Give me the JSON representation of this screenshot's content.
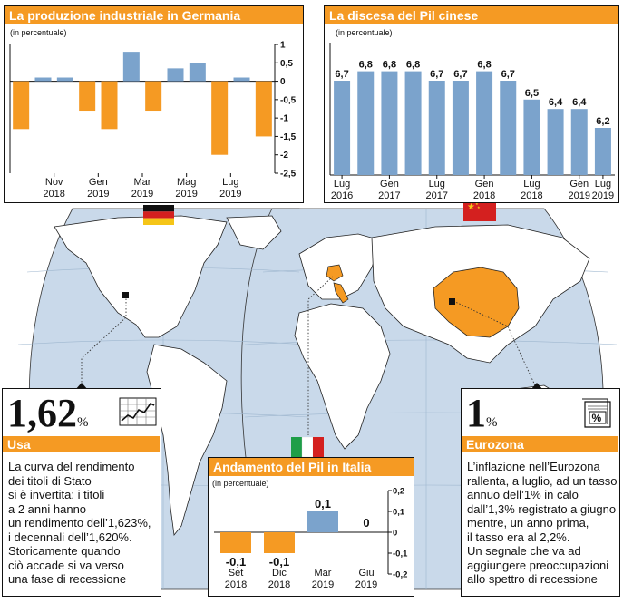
{
  "colors": {
    "orange": "#f59a23",
    "blue": "#7ba3cc",
    "ocean": "#ffffff",
    "land": "#ffffff",
    "china": "#f59a23",
    "globe": "#c9d9ea"
  },
  "germany_chart": {
    "title": "La produzione industriale in Germania",
    "subtitle": "(in percentuale)",
    "chart_data": {
      "type": "bar",
      "title": "La produzione industriale in Germania",
      "ylabel": "(in percentuale)",
      "values": [
        -1.3,
        0.1,
        0.1,
        -0.8,
        -1.3,
        0.8,
        -0.8,
        0.35,
        0.5,
        -2.0,
        0.1,
        -1.5
      ],
      "ylim": [
        -2.5,
        1
      ],
      "yticks": [
        "1",
        "0,5",
        "0",
        "-0,5",
        "-1",
        "-1,5",
        "-2",
        "-2,5"
      ],
      "xtick_labels": [
        {
          "index": 1.5,
          "line1": "Nov",
          "line2": "2018"
        },
        {
          "index": 3.5,
          "line1": "Gen",
          "line2": "2019"
        },
        {
          "index": 5.5,
          "line1": "Mar",
          "line2": "2019"
        },
        {
          "index": 7.5,
          "line1": "Mag",
          "line2": "2019"
        },
        {
          "index": 9.5,
          "line1": "Lug",
          "line2": "2019"
        }
      ]
    }
  },
  "china_chart": {
    "title": "La discesa del Pil cinese",
    "subtitle": "(in percentuale)",
    "chart_data": {
      "type": "bar",
      "title": "La discesa del Pil cinese",
      "ylabel": "(in percentuale)",
      "values": [
        6.7,
        6.8,
        6.8,
        6.8,
        6.7,
        6.7,
        6.8,
        6.7,
        6.5,
        6.4,
        6.4,
        6.2
      ],
      "data_labels": [
        "6,7",
        "6,8",
        "6,8",
        "6,8",
        "6,7",
        "6,7",
        "6,8",
        "6,7",
        "6,5",
        "6,4",
        "6,4",
        "6,2"
      ],
      "ylim": [
        5.7,
        6.95
      ],
      "xtick_labels": [
        {
          "index": 0,
          "line1": "Lug",
          "line2": "2016"
        },
        {
          "index": 2,
          "line1": "Gen",
          "line2": "2017"
        },
        {
          "index": 4,
          "line1": "Lug",
          "line2": "2017"
        },
        {
          "index": 6,
          "line1": "Gen",
          "line2": "2018"
        },
        {
          "index": 8,
          "line1": "Lug",
          "line2": "2018"
        },
        {
          "index": 10,
          "line1": "Gen",
          "line2": "2019"
        },
        {
          "index": 11,
          "line1": "Lug",
          "line2": "2019"
        }
      ]
    }
  },
  "italy_chart": {
    "title": "Andamento del Pil in Italia",
    "subtitle": "(in percentuale)",
    "chart_data": {
      "type": "bar",
      "title": "Andamento del Pil in Italia",
      "ylabel": "(in percentuale)",
      "categories": [
        "Set 2018",
        "Dic 2018",
        "Mar 2019",
        "Giu 2019"
      ],
      "values": [
        -0.1,
        -0.1,
        0.1,
        0
      ],
      "data_labels": [
        "-0,1",
        "-0,1",
        "0,1",
        "0"
      ],
      "ylim": [
        -0.2,
        0.2
      ],
      "yticks": [
        "0,2",
        "0,1",
        "0",
        "-0,1",
        "-0,2"
      ],
      "xtick_labels": [
        {
          "line1": "Set",
          "line2": "2018"
        },
        {
          "line1": "Dic",
          "line2": "2018"
        },
        {
          "line1": "Mar",
          "line2": "2019"
        },
        {
          "line1": "Giu",
          "line2": "2019"
        }
      ]
    }
  },
  "usa_box": {
    "value": "1,62",
    "unit": "%",
    "label": "Usa",
    "icon": "line-chart-icon",
    "text": [
      "La curva del rendimento",
      "dei titoli di Stato",
      "si è invertita: i titoli",
      "a 2 anni hanno",
      "un rendimento dell’1,623%,",
      "i decennali dell’1,620%.",
      "Storicamente quando",
      "ciò accade si va verso",
      "una fase di recessione"
    ]
  },
  "eurozone_box": {
    "value": "1",
    "unit": "%",
    "label": "Eurozona",
    "icon": "percent-document-icon",
    "text": [
      "L’inflazione nell’Eurozona",
      "rallenta, a luglio, ad un tasso",
      "annuo dell’1% in calo",
      "dall’1,3% registrato a giugno",
      "mentre, un anno prima,",
      "il tasso era al 2,2%.",
      "Un segnale che va ad",
      "aggiungere preoccupazioni",
      "allo spettro di recessione"
    ]
  },
  "flags": [
    "germany-flag",
    "china-flag",
    "italy-flag"
  ]
}
